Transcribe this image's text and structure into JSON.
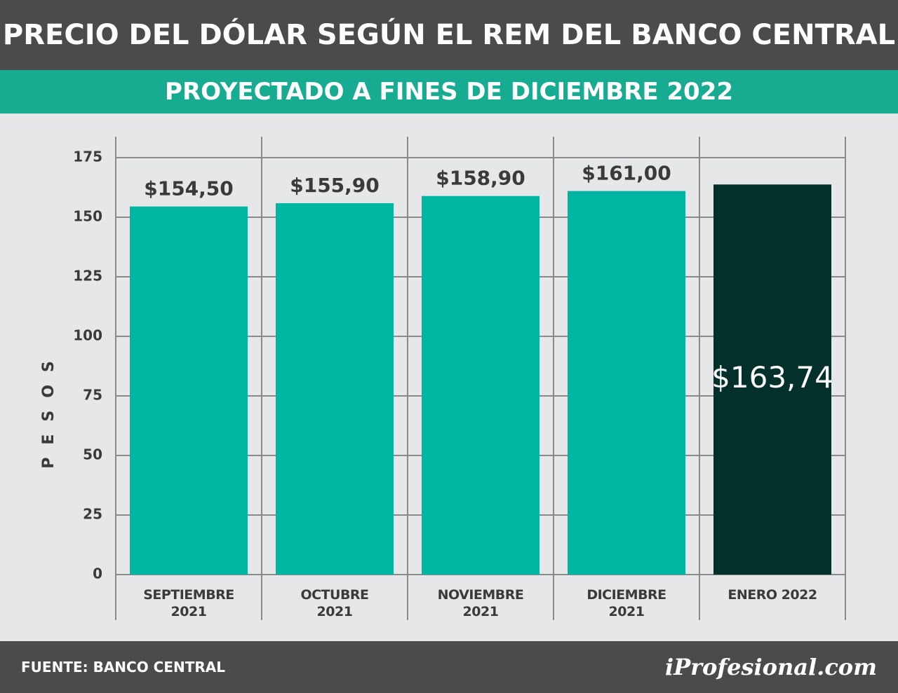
{
  "chart_data": {
    "type": "bar",
    "title": "PRECIO DEL DÓLAR SEGÚN EL REM DEL BANCO CENTRAL",
    "subtitle": "PROYECTADO A FINES DE DICIEMBRE 2022",
    "y_label": "PESOS",
    "categories": [
      "SEPTIEMBRE 2021",
      "OCTUBRE 2021",
      "NOVIEMBRE 2021",
      "DICIEMBRE 2021",
      "ENERO 2022"
    ],
    "values": [
      154.5,
      155.9,
      158.9,
      161.0,
      163.74
    ],
    "value_labels": [
      "$154,50",
      "$155,90",
      "$158,90",
      "$161,00",
      "$163,74"
    ],
    "value_label_position": [
      "above",
      "above",
      "above",
      "above",
      "inside"
    ],
    "colors": [
      "#00b5a1",
      "#00b5a1",
      "#00b5a1",
      "#00b5a1",
      "#04302b"
    ],
    "ylim": [
      0,
      175
    ],
    "yticks": [
      0,
      25,
      50,
      75,
      100,
      125,
      150,
      175
    ],
    "grid": true
  },
  "footer": {
    "source": "FUENTE: BANCO CENTRAL",
    "brand": "iProfesional.com"
  }
}
